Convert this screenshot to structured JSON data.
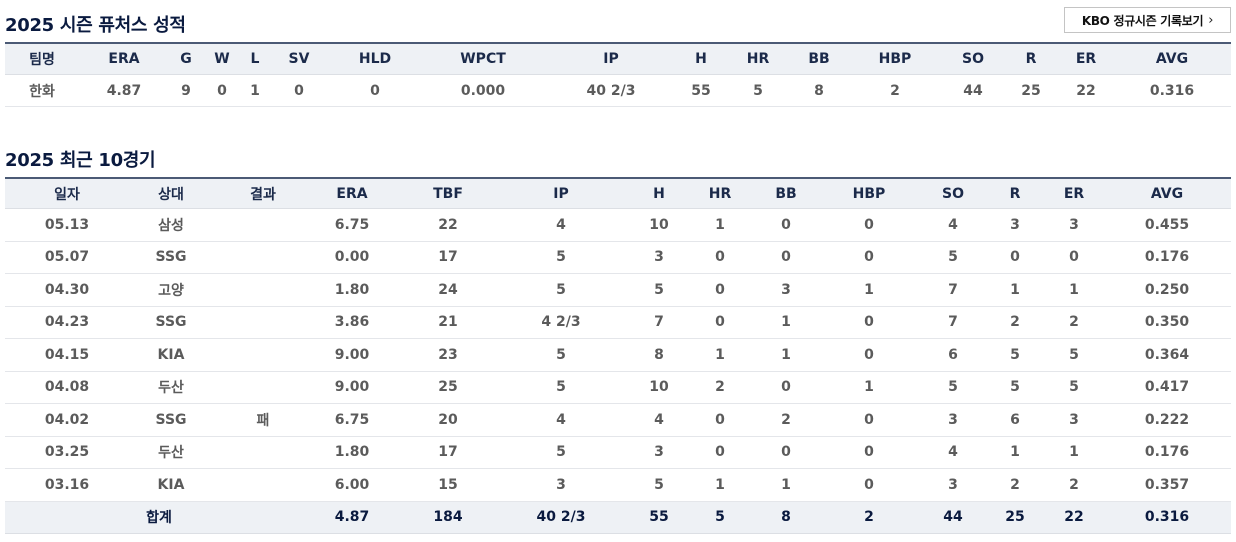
{
  "season": {
    "title": "2025 시즌 퓨처스 성적",
    "link_label": "KBO 정규시즌 기록보기",
    "headers": [
      "팀명",
      "ERA",
      "G",
      "W",
      "L",
      "SV",
      "HLD",
      "WPCT",
      "IP",
      "H",
      "HR",
      "BB",
      "HBP",
      "SO",
      "R",
      "ER",
      "AVG"
    ],
    "row": [
      "한화",
      "4.87",
      "9",
      "0",
      "1",
      "0",
      "0",
      "0.000",
      "40 2/3",
      "55",
      "5",
      "8",
      "2",
      "44",
      "25",
      "22",
      "0.316"
    ]
  },
  "recent": {
    "title": "2025 최근 10경기",
    "headers": [
      "일자",
      "상대",
      "결과",
      "ERA",
      "TBF",
      "IP",
      "H",
      "HR",
      "BB",
      "HBP",
      "SO",
      "R",
      "ER",
      "AVG"
    ],
    "rows": [
      [
        "05.13",
        "삼성",
        "",
        "6.75",
        "22",
        "4",
        "10",
        "1",
        "0",
        "0",
        "4",
        "3",
        "3",
        "0.455"
      ],
      [
        "05.07",
        "SSG",
        "",
        "0.00",
        "17",
        "5",
        "3",
        "0",
        "0",
        "0",
        "5",
        "0",
        "0",
        "0.176"
      ],
      [
        "04.30",
        "고양",
        "",
        "1.80",
        "24",
        "5",
        "5",
        "0",
        "3",
        "1",
        "7",
        "1",
        "1",
        "0.250"
      ],
      [
        "04.23",
        "SSG",
        "",
        "3.86",
        "21",
        "4 2/3",
        "7",
        "0",
        "1",
        "0",
        "7",
        "2",
        "2",
        "0.350"
      ],
      [
        "04.15",
        "KIA",
        "",
        "9.00",
        "23",
        "5",
        "8",
        "1",
        "1",
        "0",
        "6",
        "5",
        "5",
        "0.364"
      ],
      [
        "04.08",
        "두산",
        "",
        "9.00",
        "25",
        "5",
        "10",
        "2",
        "0",
        "1",
        "5",
        "5",
        "5",
        "0.417"
      ],
      [
        "04.02",
        "SSG",
        "패",
        "6.75",
        "20",
        "4",
        "4",
        "0",
        "2",
        "0",
        "3",
        "6",
        "3",
        "0.222"
      ],
      [
        "03.25",
        "두산",
        "",
        "1.80",
        "17",
        "5",
        "3",
        "0",
        "0",
        "0",
        "4",
        "1",
        "1",
        "0.176"
      ],
      [
        "03.16",
        "KIA",
        "",
        "6.00",
        "15",
        "3",
        "5",
        "1",
        "1",
        "0",
        "3",
        "2",
        "2",
        "0.357"
      ]
    ],
    "total": {
      "label": "합계",
      "values": [
        "4.87",
        "184",
        "40 2/3",
        "55",
        "5",
        "8",
        "2",
        "44",
        "25",
        "22",
        "0.316"
      ]
    }
  }
}
